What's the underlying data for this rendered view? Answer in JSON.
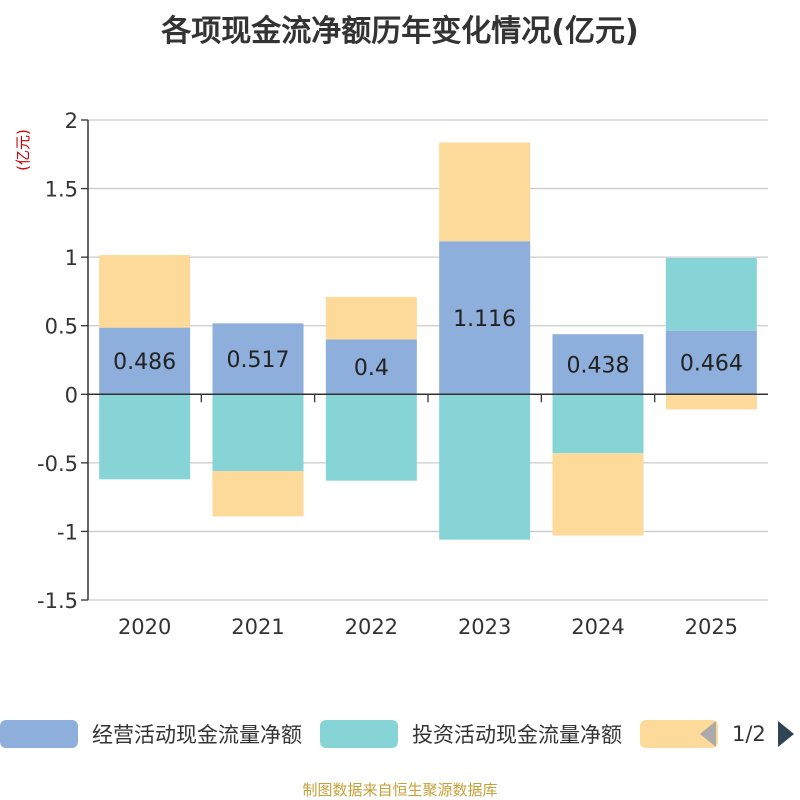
{
  "chart_data": {
    "type": "bar",
    "stacked": true,
    "title": "各项现金流净额历年变化情况(亿元)",
    "ylabel": "(亿元)",
    "ylim": [
      -1.5,
      2
    ],
    "yticks": [
      2,
      1.5,
      1,
      0.5,
      0,
      -0.5,
      -1,
      -1.5
    ],
    "ytick_labels": [
      "2",
      "1.5",
      "1",
      "0.5",
      "0",
      "-0.5",
      "-1",
      "-1.5"
    ],
    "categories": [
      "2020",
      "2021",
      "2022",
      "2023",
      "2024",
      "2025"
    ],
    "series": [
      {
        "name": "经营活动现金流量净额",
        "color": "#8eaedb",
        "values": [
          0.486,
          0.517,
          0.4,
          1.116,
          0.438,
          0.464
        ],
        "labels": [
          "0.486",
          "0.517",
          "0.4",
          "1.116",
          "0.438",
          "0.464"
        ]
      },
      {
        "name": "投资活动现金流量净额",
        "color": "#86d4d6",
        "values": [
          -0.62,
          -0.56,
          -0.63,
          -1.06,
          -0.43,
          0.53
        ]
      },
      {
        "name": "",
        "color": "#fdd99a",
        "values": [
          0.53,
          -0.33,
          0.31,
          0.72,
          -0.6,
          -0.11
        ]
      }
    ],
    "legend_position": "bottom",
    "grid": true
  },
  "legend": {
    "page_indicator": "1/2"
  },
  "source": "制图数据来自恒生聚源数据库"
}
